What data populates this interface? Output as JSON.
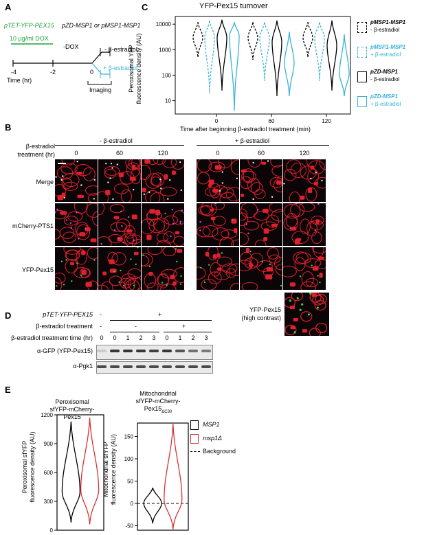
{
  "panels": {
    "A": "A",
    "B": "B",
    "C": "C",
    "D": "D",
    "E": "E"
  },
  "panelA": {
    "construct": "pTET-YFP-PEX15",
    "strains": "pZD-MSP1 or pMSP1-MSP1",
    "dox": "10 µg/ml DOX",
    "minus_dox": "-DOX",
    "minus_estradiol": "- β-estradiol",
    "plus_estradiol": "+ β-estradiol",
    "imaging": "Imaging",
    "t_minus4": "-4",
    "t_minus2": "-2",
    "t_zero": "0",
    "time_label": "Time (hr)"
  },
  "panelC": {
    "chart_data": {
      "type": "violin",
      "title": "YFP-Pex15 turnover",
      "xlabel": "Time after beginning β-estradiol treatment (min)",
      "ylabel": "Peroxisomal YFP fluorescence density (AU)",
      "ylabel_line1": "Peroxisomal YFP",
      "ylabel_line2": "fluorescence density (AU)",
      "yscale": "log",
      "ylim": [
        3,
        20000
      ],
      "yticks": [
        "10000",
        "1000",
        "100",
        "10"
      ],
      "categories": [
        "0",
        "60",
        "120"
      ],
      "series": [
        {
          "name": "pMSP1-MSP1 - β-estradiol",
          "color": "#000000",
          "dashed": true,
          "median": [
            3000,
            3000,
            3000
          ],
          "range": [
            [
              500,
              12000
            ],
            [
              400,
              12000
            ],
            [
              500,
              12000
            ]
          ]
        },
        {
          "name": "pMSP1-MSP1 + β-estradiol",
          "color": "#35b3d8",
          "dashed": true,
          "median": [
            3000,
            3000,
            3000
          ],
          "range": [
            [
              20,
              14000
            ],
            [
              60,
              12000
            ],
            [
              60,
              12000
            ]
          ]
        },
        {
          "name": "pZD-MSP1 - β-estradiol",
          "color": "#000000",
          "dashed": false,
          "median": [
            3000,
            2000,
            1500
          ],
          "range": [
            [
              25,
              15000
            ],
            [
              15,
              14000
            ],
            [
              25,
              14000
            ]
          ]
        },
        {
          "name": "pZD-MSP1 + β-estradiol",
          "color": "#35b3d8",
          "dashed": false,
          "median": [
            3500,
            300,
            110
          ],
          "range": [
            [
              4,
              12000
            ],
            [
              15,
              5000
            ],
            [
              15,
              4000
            ]
          ]
        }
      ]
    },
    "legend": [
      {
        "l1": "pMSP1-MSP1",
        "l2": "- β-estradiol"
      },
      {
        "l1": "pMSP1-MSP1",
        "l2": "+ β-estradiol"
      },
      {
        "l1": "pZD-MSP1",
        "l2": "- β-estradiol"
      },
      {
        "l1": "pZD-MSP1",
        "l2": "+ β-estradiol"
      }
    ]
  },
  "panelB": {
    "treatment_label_1": "β-estradiol",
    "treatment_label_2": "treatment (hr)",
    "group_minus": "- β-estradiol",
    "group_plus": "+ β-estradiol",
    "times": [
      "0",
      "60",
      "120",
      "0",
      "60",
      "120"
    ],
    "rows": [
      "Merge",
      "mCherry-PTS1",
      "YFP-Pex15"
    ],
    "high_contrast_1": "YFP-Pex15",
    "high_contrast_2": "(high contrast)"
  },
  "panelD": {
    "construct": "pTET-YFP-PEX15",
    "treatment": "β-estradiol treatment",
    "treatment_time": "β-estradiol treatment time (hr)",
    "construct_marks": [
      "-",
      "+"
    ],
    "treatment_marks": [
      "-",
      "-",
      "+"
    ],
    "lanes": [
      "0",
      "0",
      "1",
      "2",
      "3",
      "0",
      "1",
      "2",
      "3"
    ],
    "blot1": "α-GFP (YFP-Pex15)",
    "blot2": "α-Pgk1"
  },
  "panelE": {
    "chart_data": [
      {
        "type": "violin",
        "title": "Peroxisomal sfYFP-mCherry-Pex15",
        "title_lines": [
          "Peroxisomal",
          "sfYFP-mCherry-",
          "Pex15"
        ],
        "ylabel": "Peroxisomal sfYFP fluorescence density (AU)",
        "ylabel_line1": "Peroxisomal sfYFP",
        "ylabel_line2": "fluorescence density (AU)",
        "ylim": [
          0,
          1200
        ],
        "yticks": [
          "1200",
          "900",
          "600",
          "300",
          "0"
        ],
        "series": [
          {
            "name": "MSP1",
            "color": "#000000",
            "median": 400,
            "range": [
              80,
              1130
            ]
          },
          {
            "name": "msp1Δ",
            "color": "#d93030",
            "median": 420,
            "range": [
              60,
              1170
            ]
          }
        ],
        "background": 0
      },
      {
        "type": "violin",
        "title": "Mitochondrial sfYFP-mCherry-Pex15ΔC30",
        "title_lines": [
          "Mitochondrial",
          "sfYFP-mCherry-",
          "Pex15",
          "ΔC30"
        ],
        "ylabel": "Mitochondrial sfYFP fluorescence density (AU)",
        "ylabel_line1": "Mitochondrial sfYFP",
        "ylabel_line2": "fluorescence density (AU)",
        "ylim": [
          -60,
          180
        ],
        "yticks": [
          "150",
          "100",
          "50",
          "0",
          "-50"
        ],
        "series": [
          {
            "name": "MSP1",
            "color": "#000000",
            "median": 0,
            "range": [
              -45,
              35
            ]
          },
          {
            "name": "msp1Δ",
            "color": "#d93030",
            "median": 8,
            "range": [
              -58,
              178
            ]
          }
        ],
        "background": 0
      }
    ],
    "legend": {
      "msp1": "MSP1",
      "msp1d": "msp1Δ",
      "background": "Background"
    }
  }
}
